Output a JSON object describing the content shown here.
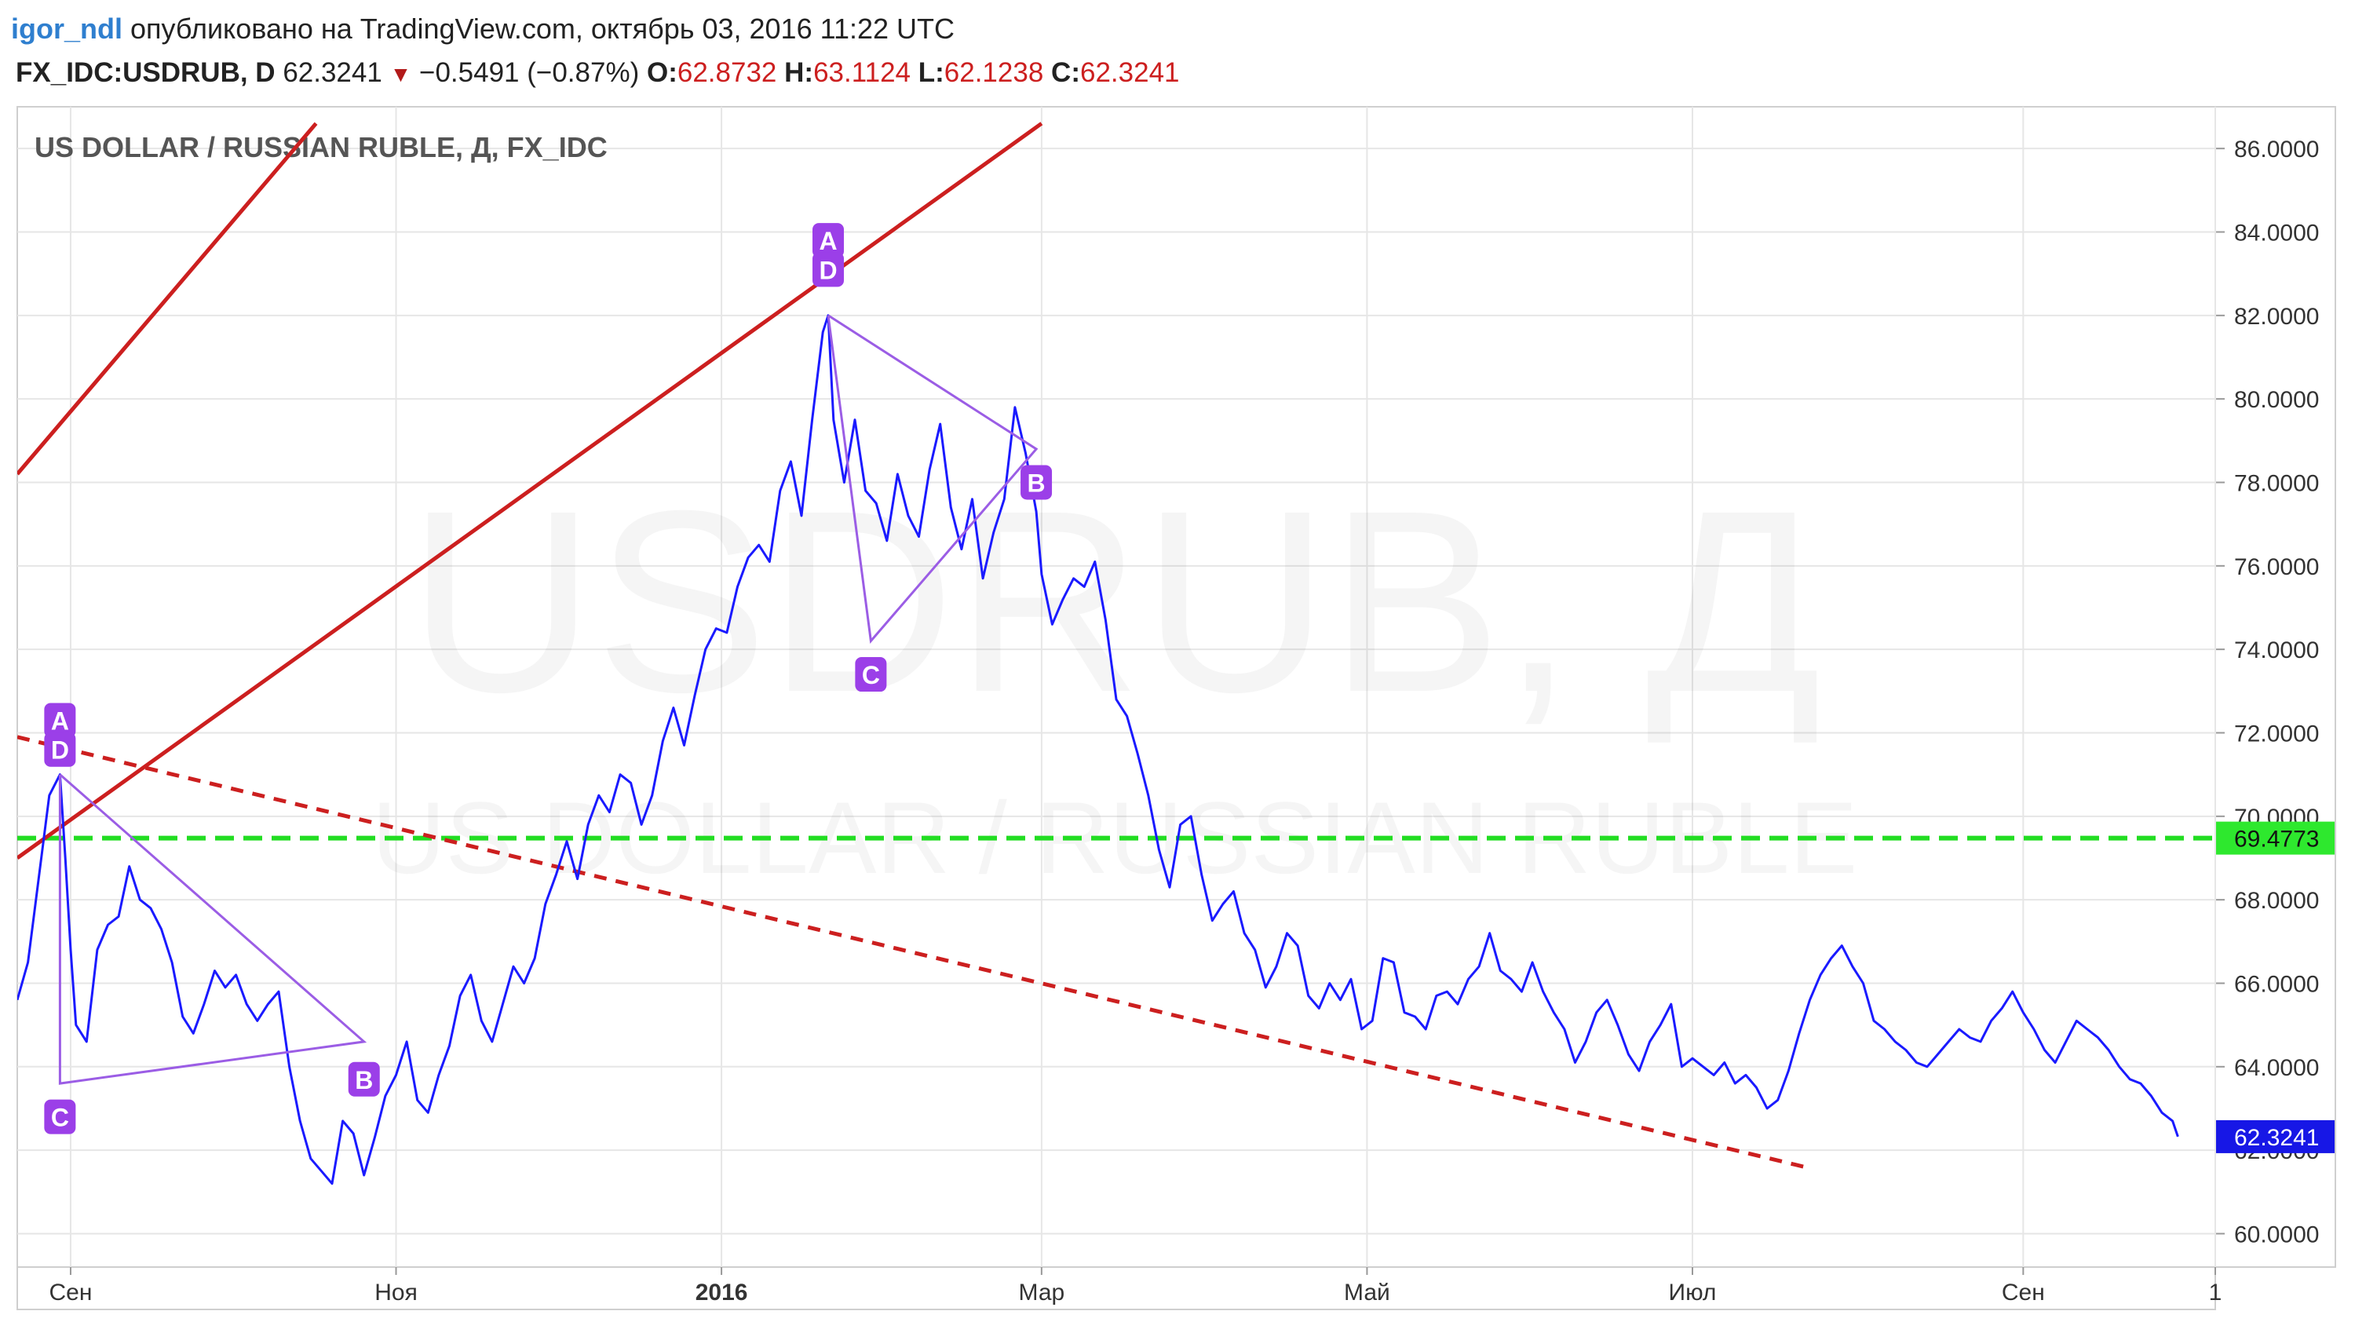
{
  "header": {
    "author": "igor_ndl",
    "published": "опубликовано на TradingView.com, октябрь 03, 2016 11:22 UTC"
  },
  "quote": {
    "symbol": "FX_IDC:USDRUB, D",
    "last": "62.3241",
    "direction_icon": "triangle-down-icon",
    "change": "−0.5491 (−0.87%)",
    "o_label": "O:",
    "o": "62.8732",
    "h_label": "H:",
    "h": "63.1124",
    "l_label": "L:",
    "l": "62.1238",
    "c_label": "C:",
    "c": "62.3241"
  },
  "colors": {
    "price_line": "#1a1aff",
    "trend_line": "#cc1f1f",
    "horizontal_line": "#22dd22",
    "pattern": "#9b5de5",
    "pattern_label_bg": "#9b3fe8",
    "last_price_tag": "#1717e6",
    "level_tag": "#2ee82e",
    "grid": "#e6e6e6"
  },
  "chart_data": {
    "type": "line",
    "title": "US DOLLAR / RUSSIAN RUBLE, Д, FX_IDC",
    "watermark_main": "USDRUB, Д",
    "watermark_sub": "US DOLLAR / RUSSIAN RUBLE",
    "xlabel": "",
    "ylabel": "",
    "ylim": [
      59.2,
      87.0
    ],
    "x_range": [
      "2015-08-22",
      "2016-10-07"
    ],
    "grid": true,
    "legend": "none",
    "y_ticks": [
      "60.0000",
      "62.0000",
      "64.0000",
      "66.0000",
      "68.0000",
      "70.0000",
      "72.0000",
      "74.0000",
      "76.0000",
      "78.0000",
      "80.0000",
      "82.0000",
      "84.0000",
      "86.0000"
    ],
    "x_ticks": [
      {
        "date": "2015-09-01",
        "label": "Сен",
        "bold": false
      },
      {
        "date": "2015-11-01",
        "label": "Ноя",
        "bold": false
      },
      {
        "date": "2016-01-01",
        "label": "2016",
        "bold": true
      },
      {
        "date": "2016-03-01",
        "label": "Мар",
        "bold": false
      },
      {
        "date": "2016-05-01",
        "label": "Май",
        "bold": false
      },
      {
        "date": "2016-07-01",
        "label": "Июл",
        "bold": false
      },
      {
        "date": "2016-09-01",
        "label": "Сен",
        "bold": false
      },
      {
        "date": "2016-10-07",
        "label": "1",
        "bold": false
      }
    ],
    "series": [
      {
        "points": [
          [
            "2015-08-22",
            65.6
          ],
          [
            "2015-08-24",
            66.5
          ],
          [
            "2015-08-26",
            68.5
          ],
          [
            "2015-08-28",
            70.5
          ],
          [
            "2015-08-30",
            71.0
          ],
          [
            "2015-08-31",
            69.0
          ],
          [
            "2015-09-01",
            66.8
          ],
          [
            "2015-09-02",
            65.0
          ],
          [
            "2015-09-04",
            64.6
          ],
          [
            "2015-09-06",
            66.8
          ],
          [
            "2015-09-08",
            67.4
          ],
          [
            "2015-09-10",
            67.6
          ],
          [
            "2015-09-12",
            68.8
          ],
          [
            "2015-09-14",
            68.0
          ],
          [
            "2015-09-16",
            67.8
          ],
          [
            "2015-09-18",
            67.3
          ],
          [
            "2015-09-20",
            66.5
          ],
          [
            "2015-09-22",
            65.2
          ],
          [
            "2015-09-24",
            64.8
          ],
          [
            "2015-09-26",
            65.5
          ],
          [
            "2015-09-28",
            66.3
          ],
          [
            "2015-09-30",
            65.9
          ],
          [
            "2015-10-02",
            66.2
          ],
          [
            "2015-10-04",
            65.5
          ],
          [
            "2015-10-06",
            65.1
          ],
          [
            "2015-10-08",
            65.5
          ],
          [
            "2015-10-10",
            65.8
          ],
          [
            "2015-10-12",
            64.0
          ],
          [
            "2015-10-14",
            62.7
          ],
          [
            "2015-10-16",
            61.8
          ],
          [
            "2015-10-18",
            61.5
          ],
          [
            "2015-10-20",
            61.2
          ],
          [
            "2015-10-22",
            62.7
          ],
          [
            "2015-10-24",
            62.4
          ],
          [
            "2015-10-26",
            61.4
          ],
          [
            "2015-10-28",
            62.3
          ],
          [
            "2015-10-30",
            63.3
          ],
          [
            "2015-11-01",
            63.8
          ],
          [
            "2015-11-03",
            64.6
          ],
          [
            "2015-11-05",
            63.2
          ],
          [
            "2015-11-07",
            62.9
          ],
          [
            "2015-11-09",
            63.8
          ],
          [
            "2015-11-11",
            64.5
          ],
          [
            "2015-11-13",
            65.7
          ],
          [
            "2015-11-15",
            66.2
          ],
          [
            "2015-11-17",
            65.1
          ],
          [
            "2015-11-19",
            64.6
          ],
          [
            "2015-11-21",
            65.5
          ],
          [
            "2015-11-23",
            66.4
          ],
          [
            "2015-11-25",
            66.0
          ],
          [
            "2015-11-27",
            66.6
          ],
          [
            "2015-11-29",
            67.9
          ],
          [
            "2015-12-01",
            68.6
          ],
          [
            "2015-12-03",
            69.4
          ],
          [
            "2015-12-05",
            68.5
          ],
          [
            "2015-12-07",
            69.8
          ],
          [
            "2015-12-09",
            70.5
          ],
          [
            "2015-12-11",
            70.1
          ],
          [
            "2015-12-13",
            71.0
          ],
          [
            "2015-12-15",
            70.8
          ],
          [
            "2015-12-17",
            69.8
          ],
          [
            "2015-12-19",
            70.5
          ],
          [
            "2015-12-21",
            71.8
          ],
          [
            "2015-12-23",
            72.6
          ],
          [
            "2015-12-25",
            71.7
          ],
          [
            "2015-12-27",
            72.9
          ],
          [
            "2015-12-29",
            74.0
          ],
          [
            "2015-12-31",
            74.5
          ],
          [
            "2016-01-02",
            74.4
          ],
          [
            "2016-01-04",
            75.5
          ],
          [
            "2016-01-06",
            76.2
          ],
          [
            "2016-01-08",
            76.5
          ],
          [
            "2016-01-10",
            76.1
          ],
          [
            "2016-01-12",
            77.8
          ],
          [
            "2016-01-14",
            78.5
          ],
          [
            "2016-01-16",
            77.2
          ],
          [
            "2016-01-18",
            79.5
          ],
          [
            "2016-01-20",
            81.6
          ],
          [
            "2016-01-21",
            82.0
          ],
          [
            "2016-01-22",
            79.5
          ],
          [
            "2016-01-24",
            78.0
          ],
          [
            "2016-01-26",
            79.5
          ],
          [
            "2016-01-28",
            77.8
          ],
          [
            "2016-01-30",
            77.5
          ],
          [
            "2016-02-01",
            76.6
          ],
          [
            "2016-02-03",
            78.2
          ],
          [
            "2016-02-05",
            77.2
          ],
          [
            "2016-02-07",
            76.7
          ],
          [
            "2016-02-09",
            78.3
          ],
          [
            "2016-02-11",
            79.4
          ],
          [
            "2016-02-13",
            77.4
          ],
          [
            "2016-02-15",
            76.4
          ],
          [
            "2016-02-17",
            77.6
          ],
          [
            "2016-02-19",
            75.7
          ],
          [
            "2016-02-21",
            76.8
          ],
          [
            "2016-02-23",
            77.6
          ],
          [
            "2016-02-25",
            79.8
          ],
          [
            "2016-02-27",
            78.7
          ],
          [
            "2016-02-29",
            77.3
          ],
          [
            "2016-03-01",
            75.8
          ],
          [
            "2016-03-03",
            74.6
          ],
          [
            "2016-03-05",
            75.2
          ],
          [
            "2016-03-07",
            75.7
          ],
          [
            "2016-03-09",
            75.5
          ],
          [
            "2016-03-11",
            76.1
          ],
          [
            "2016-03-13",
            74.7
          ],
          [
            "2016-03-15",
            72.8
          ],
          [
            "2016-03-17",
            72.4
          ],
          [
            "2016-03-19",
            71.5
          ],
          [
            "2016-03-21",
            70.5
          ],
          [
            "2016-03-23",
            69.2
          ],
          [
            "2016-03-25",
            68.3
          ],
          [
            "2016-03-27",
            69.8
          ],
          [
            "2016-03-29",
            70.0
          ],
          [
            "2016-03-31",
            68.6
          ],
          [
            "2016-04-02",
            67.5
          ],
          [
            "2016-04-04",
            67.9
          ],
          [
            "2016-04-06",
            68.2
          ],
          [
            "2016-04-08",
            67.2
          ],
          [
            "2016-04-10",
            66.8
          ],
          [
            "2016-04-12",
            65.9
          ],
          [
            "2016-04-14",
            66.4
          ],
          [
            "2016-04-16",
            67.2
          ],
          [
            "2016-04-18",
            66.9
          ],
          [
            "2016-04-20",
            65.7
          ],
          [
            "2016-04-22",
            65.4
          ],
          [
            "2016-04-24",
            66.0
          ],
          [
            "2016-04-26",
            65.6
          ],
          [
            "2016-04-28",
            66.1
          ],
          [
            "2016-04-30",
            64.9
          ],
          [
            "2016-05-02",
            65.1
          ],
          [
            "2016-05-04",
            66.6
          ],
          [
            "2016-05-06",
            66.5
          ],
          [
            "2016-05-08",
            65.3
          ],
          [
            "2016-05-10",
            65.2
          ],
          [
            "2016-05-12",
            64.9
          ],
          [
            "2016-05-14",
            65.7
          ],
          [
            "2016-05-16",
            65.8
          ],
          [
            "2016-05-18",
            65.5
          ],
          [
            "2016-05-20",
            66.1
          ],
          [
            "2016-05-22",
            66.4
          ],
          [
            "2016-05-24",
            67.2
          ],
          [
            "2016-05-26",
            66.3
          ],
          [
            "2016-05-28",
            66.1
          ],
          [
            "2016-05-30",
            65.8
          ],
          [
            "2016-06-01",
            66.5
          ],
          [
            "2016-06-03",
            65.8
          ],
          [
            "2016-06-05",
            65.3
          ],
          [
            "2016-06-07",
            64.9
          ],
          [
            "2016-06-09",
            64.1
          ],
          [
            "2016-06-11",
            64.6
          ],
          [
            "2016-06-13",
            65.3
          ],
          [
            "2016-06-15",
            65.6
          ],
          [
            "2016-06-17",
            65.0
          ],
          [
            "2016-06-19",
            64.3
          ],
          [
            "2016-06-21",
            63.9
          ],
          [
            "2016-06-23",
            64.6
          ],
          [
            "2016-06-25",
            65.0
          ],
          [
            "2016-06-27",
            65.5
          ],
          [
            "2016-06-29",
            64.0
          ],
          [
            "2016-07-01",
            64.2
          ],
          [
            "2016-07-03",
            64.0
          ],
          [
            "2016-07-05",
            63.8
          ],
          [
            "2016-07-07",
            64.1
          ],
          [
            "2016-07-09",
            63.6
          ],
          [
            "2016-07-11",
            63.8
          ],
          [
            "2016-07-13",
            63.5
          ],
          [
            "2016-07-15",
            63.0
          ],
          [
            "2016-07-17",
            63.2
          ],
          [
            "2016-07-19",
            63.9
          ],
          [
            "2016-07-21",
            64.8
          ],
          [
            "2016-07-23",
            65.6
          ],
          [
            "2016-07-25",
            66.2
          ],
          [
            "2016-07-27",
            66.6
          ],
          [
            "2016-07-29",
            66.9
          ],
          [
            "2016-07-31",
            66.4
          ],
          [
            "2016-08-02",
            66.0
          ],
          [
            "2016-08-04",
            65.1
          ],
          [
            "2016-08-06",
            64.9
          ],
          [
            "2016-08-08",
            64.6
          ],
          [
            "2016-08-10",
            64.4
          ],
          [
            "2016-08-12",
            64.1
          ],
          [
            "2016-08-14",
            64.0
          ],
          [
            "2016-08-16",
            64.3
          ],
          [
            "2016-08-18",
            64.6
          ],
          [
            "2016-08-20",
            64.9
          ],
          [
            "2016-08-22",
            64.7
          ],
          [
            "2016-08-24",
            64.6
          ],
          [
            "2016-08-26",
            65.1
          ],
          [
            "2016-08-28",
            65.4
          ],
          [
            "2016-08-30",
            65.8
          ],
          [
            "2016-09-01",
            65.3
          ],
          [
            "2016-09-03",
            64.9
          ],
          [
            "2016-09-05",
            64.4
          ],
          [
            "2016-09-07",
            64.1
          ],
          [
            "2016-09-09",
            64.6
          ],
          [
            "2016-09-11",
            65.1
          ],
          [
            "2016-09-13",
            64.9
          ],
          [
            "2016-09-15",
            64.7
          ],
          [
            "2016-09-17",
            64.4
          ],
          [
            "2016-09-19",
            64.0
          ],
          [
            "2016-09-21",
            63.7
          ],
          [
            "2016-09-23",
            63.6
          ],
          [
            "2016-09-25",
            63.3
          ],
          [
            "2016-09-27",
            62.9
          ],
          [
            "2016-09-29",
            62.7
          ],
          [
            "2016-09-30",
            62.3241
          ]
        ]
      }
    ],
    "horizontal_line": {
      "value": 69.4773,
      "label": "69.4773"
    },
    "last_price": {
      "value": 62.3241,
      "label": "62.3241"
    },
    "trend_lines": [
      {
        "style": "solid",
        "from": [
          "2015-08-22",
          78.2
        ],
        "to": [
          "2015-10-17",
          86.6
        ]
      },
      {
        "style": "solid",
        "from": [
          "2015-08-22",
          69.0
        ],
        "to": [
          "2016-03-01",
          86.6
        ]
      },
      {
        "style": "dashed",
        "from": [
          "2015-08-22",
          71.9
        ],
        "to": [
          "2016-07-22",
          61.6
        ]
      }
    ],
    "patterns": [
      {
        "points": [
          {
            "label": "A",
            "date": "2015-08-30",
            "value": 71.0
          },
          {
            "label": "C",
            "date": "2015-08-30",
            "value": 63.6
          },
          {
            "label": "B",
            "date": "2015-10-26",
            "value": 64.6
          },
          {
            "label": "D",
            "date": "2015-08-30",
            "value": 71.0
          }
        ],
        "labels": [
          {
            "text": "A",
            "date": "2015-08-30",
            "value": 72.3
          },
          {
            "text": "D",
            "date": "2015-08-30",
            "value": 71.6
          },
          {
            "text": "C",
            "date": "2015-08-30",
            "value": 62.8
          },
          {
            "text": "B",
            "date": "2015-10-26",
            "value": 63.7
          }
        ]
      },
      {
        "points": [
          {
            "label": "A",
            "date": "2016-01-21",
            "value": 82.0
          },
          {
            "label": "C",
            "date": "2016-01-29",
            "value": 74.2
          },
          {
            "label": "B",
            "date": "2016-02-29",
            "value": 78.8
          },
          {
            "label": "D",
            "date": "2016-01-21",
            "value": 82.0
          }
        ],
        "labels": [
          {
            "text": "A",
            "date": "2016-01-21",
            "value": 83.8
          },
          {
            "text": "D",
            "date": "2016-01-21",
            "value": 83.1
          },
          {
            "text": "C",
            "date": "2016-01-29",
            "value": 73.4
          },
          {
            "text": "B",
            "date": "2016-02-29",
            "value": 78.0
          }
        ]
      }
    ]
  }
}
